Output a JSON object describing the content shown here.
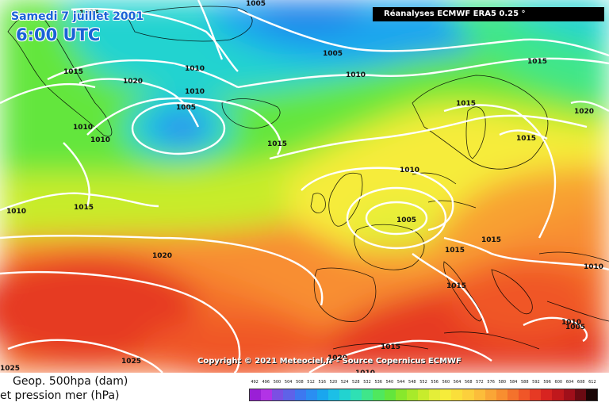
{
  "header": {
    "date": "Samedi 7 juillet 2001",
    "time": "6:00 UTC",
    "source": "Réanalyses ECMWF ERA5 0.25 °"
  },
  "footer": {
    "copyright": "Copyright © 2021 Meteociel.fr - Source Copernicus ECMWF",
    "legend_title_line1": "Geop. 500hpa (dam)",
    "legend_title_line2": "et pression mer (hPa)"
  },
  "legend": {
    "values": [
      492,
      496,
      500,
      504,
      508,
      512,
      516,
      520,
      524,
      528,
      532,
      536,
      540,
      544,
      548,
      552,
      556,
      560,
      564,
      568,
      572,
      576,
      580,
      584,
      588,
      592,
      596,
      600,
      604,
      608,
      612
    ],
    "colors": [
      "#9a1fd6",
      "#b233e6",
      "#7b4fe3",
      "#5f62e8",
      "#3d78f0",
      "#2a8ef2",
      "#1aa6ee",
      "#1cbfe6",
      "#22d3d0",
      "#2fe0b4",
      "#3fe68a",
      "#4fe85e",
      "#63e63c",
      "#88e82c",
      "#a8ea2a",
      "#c8ec2c",
      "#e4ee38",
      "#f6ec3a",
      "#fadf3a",
      "#fcd03c",
      "#fcbd3a",
      "#faa636",
      "#f88e30",
      "#f4722c",
      "#f05628",
      "#e63a24",
      "#d82420",
      "#c0181c",
      "#a00f1a",
      "#6a0a12",
      "#1a0505"
    ]
  },
  "map": {
    "isobar_labels": [
      "1015",
      "1005",
      "1005",
      "1015",
      "1020",
      "1010",
      "1010",
      "1005",
      "1010",
      "1015",
      "1010",
      "1010",
      "1010",
      "1015",
      "1015",
      "1020",
      "1015",
      "1015",
      "1010",
      "1005",
      "1015",
      "1015",
      "1015",
      "1010",
      "1020",
      "1025",
      "1020",
      "1015",
      "1010",
      "1010",
      "1005",
      "1025"
    ],
    "field_colors": {
      "cyan": "#22c8e8",
      "deep_blue": "#1a7fe8",
      "green": "#4ee85a",
      "yellow": "#f6ec3a",
      "orange": "#f8a232",
      "red": "#ee4a2a",
      "deep_red": "#e0342a"
    }
  }
}
